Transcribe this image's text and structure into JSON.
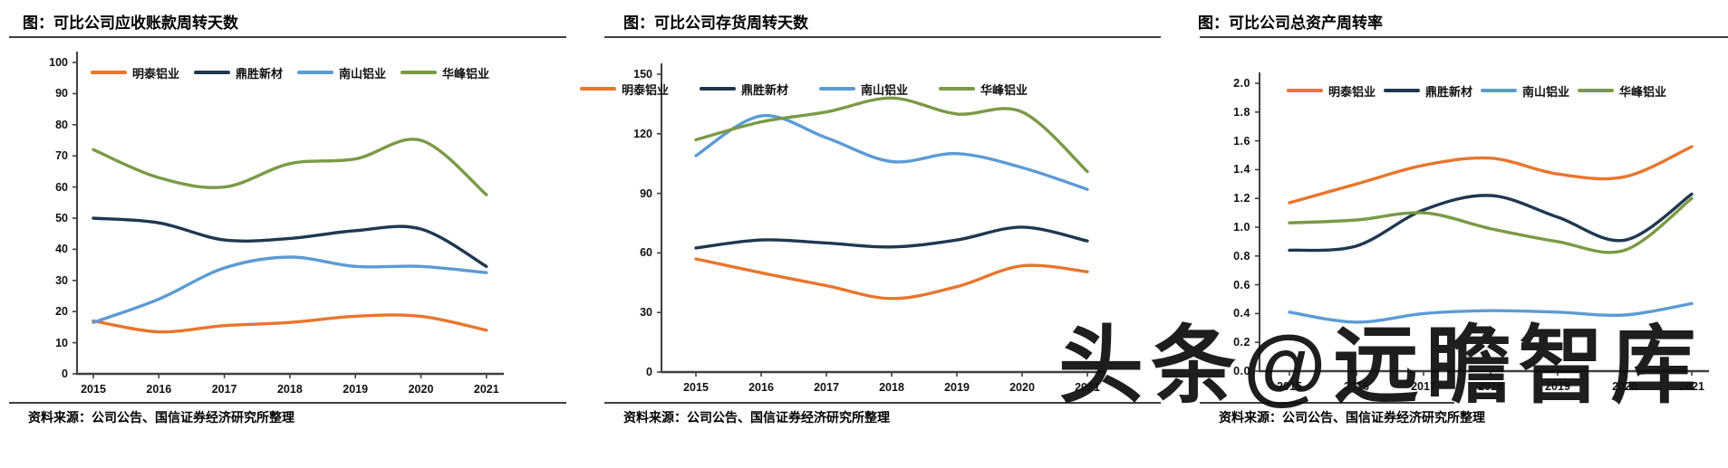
{
  "watermark": "头条@远瞻智库",
  "chart_data": [
    {
      "type": "line",
      "title": "图：可比公司应收账款周转天数",
      "source": "资料来源：公司公告、国信证券经济研究所整理",
      "x": [
        2015,
        2016,
        2017,
        2018,
        2019,
        2020,
        2021
      ],
      "x_tick_labels": [
        "2015",
        "2016",
        "2017",
        "2018",
        "2019",
        "2020",
        "2021"
      ],
      "ylim": [
        0,
        100
      ],
      "y_step": 10,
      "y_tick_labels": [
        "100",
        "90",
        "80",
        "70",
        "60",
        "50",
        "40",
        "30",
        "20",
        "10",
        "0"
      ],
      "grid": false,
      "legend_position": "top",
      "series": [
        {
          "name": "明泰铝业",
          "color": "#E8762C",
          "values": [
            17,
            13.5,
            15.5,
            16.5,
            18.5,
            18.5,
            14
          ]
        },
        {
          "name": "鼎胜新材",
          "color": "#1F3850",
          "values": [
            50,
            48.5,
            43,
            43.5,
            46,
            46.5,
            34.5
          ]
        },
        {
          "name": "南山铝业",
          "color": "#5B9BD5",
          "values": [
            16.5,
            24,
            34,
            37.5,
            34.5,
            34.5,
            32.5
          ]
        },
        {
          "name": "华峰铝业",
          "color": "#7A9A44",
          "values": [
            72,
            63,
            60,
            67.5,
            69,
            75,
            57.5
          ]
        }
      ]
    },
    {
      "type": "line",
      "title": "图：可比公司存货周转天数",
      "source": "资料来源：公司公告、国信证券经济研究所整理",
      "x": [
        2015,
        2016,
        2017,
        2018,
        2019,
        2020,
        2021
      ],
      "x_tick_labels": [
        "2015",
        "2016",
        "2017",
        "2018",
        "2019",
        "2020",
        "2021"
      ],
      "ylim": [
        0,
        150
      ],
      "y_step": 30,
      "y_tick_labels": [
        "150",
        "120",
        "90",
        "60",
        "30",
        "0"
      ],
      "grid": false,
      "legend_position": "top",
      "series": [
        {
          "name": "明泰铝业",
          "color": "#E8762C",
          "values": [
            57,
            50,
            43.5,
            37,
            43,
            53.5,
            50.5
          ]
        },
        {
          "name": "鼎胜新材",
          "color": "#1F3850",
          "values": [
            62.5,
            66.5,
            65,
            63,
            66.5,
            73,
            66
          ]
        },
        {
          "name": "南山铝业",
          "color": "#5B9BD5",
          "values": [
            109,
            129,
            118,
            106,
            110,
            103,
            92
          ]
        },
        {
          "name": "华峰铝业",
          "color": "#7A9A44",
          "values": [
            117,
            126,
            131,
            138,
            130,
            131,
            101
          ]
        }
      ]
    },
    {
      "type": "line",
      "title": "图：可比公司总资产周转率",
      "source": "资料来源：公司公告、国信证券经济研究所整理",
      "x": [
        2015,
        2016,
        2017,
        2018,
        2019,
        2020,
        2021
      ],
      "x_tick_labels": [
        "2015",
        "2016",
        "2017",
        "2018",
        "2019",
        "2020",
        "2021"
      ],
      "ylim": [
        0,
        2.0
      ],
      "y_step": 0.2,
      "y_tick_labels": [
        "2.0",
        "1.8",
        "1.6",
        "1.4",
        "1.2",
        "1.0",
        "0.8",
        "0.6",
        "0.4",
        "0.2",
        "0.0"
      ],
      "grid": false,
      "legend_position": "top",
      "series": [
        {
          "name": "明泰铝业",
          "color": "#E8762C",
          "values": [
            1.17,
            1.3,
            1.43,
            1.48,
            1.37,
            1.35,
            1.56
          ]
        },
        {
          "name": "鼎胜新材",
          "color": "#1F3850",
          "values": [
            0.84,
            0.87,
            1.12,
            1.22,
            1.07,
            0.91,
            1.23
          ]
        },
        {
          "name": "南山铝业",
          "color": "#5B9BD5",
          "values": [
            0.41,
            0.34,
            0.4,
            0.42,
            0.41,
            0.39,
            0.47
          ]
        },
        {
          "name": "华峰铝业",
          "color": "#7A9A44",
          "values": [
            1.03,
            1.05,
            1.1,
            0.99,
            0.9,
            0.84,
            1.2
          ]
        }
      ]
    }
  ]
}
